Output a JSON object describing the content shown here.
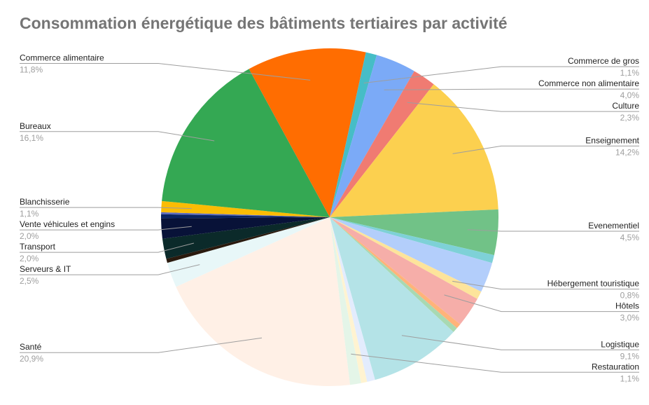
{
  "chart_data": {
    "type": "pie",
    "title": "Consommation énergétique des bâtiments tertiaires par activité",
    "slices": [
      {
        "label": "",
        "value": 0.2,
        "value_label": "",
        "color": "#5c6bc0"
      },
      {
        "label": "Blanchisserie",
        "value": 1.1,
        "value_label": "1,1%",
        "color": "#fbbc04"
      },
      {
        "label": "Bureaux",
        "value": 16.1,
        "value_label": "16,1%",
        "color": "#34a853"
      },
      {
        "label": "Commerce alimentaire",
        "value": 11.8,
        "value_label": "11,8%",
        "color": "#ff6d01"
      },
      {
        "label": "Commerce de gros",
        "value": 1.1,
        "value_label": "1,1%",
        "color": "#46bdc6"
      },
      {
        "label": "Commerce non alimentaire",
        "value": 4.0,
        "value_label": "4,0%",
        "color": "#7baaf7"
      },
      {
        "label": "Culture",
        "value": 2.3,
        "value_label": "2,3%",
        "color": "#f07b72"
      },
      {
        "label": "Enseignement",
        "value": 14.2,
        "value_label": "14,2%",
        "color": "#fcd04f"
      },
      {
        "label": "Evenementiel",
        "value": 4.5,
        "value_label": "4,5%",
        "color": "#71c287"
      },
      {
        "label": "",
        "value": 0.8,
        "value_label": "",
        "color": "#7ed1d7"
      },
      {
        "label": "",
        "value": 3.0,
        "value_label": "",
        "color": "#b3cefb"
      },
      {
        "label": "Hébergement touristique",
        "value": 0.8,
        "value_label": "0,8%",
        "color": "#fde49b"
      },
      {
        "label": "Hôtels",
        "value": 3.0,
        "value_label": "3,0%",
        "color": "#f6aea9"
      },
      {
        "label": "",
        "value": 0.5,
        "value_label": "",
        "color": "#ffb37a"
      },
      {
        "label": "",
        "value": 0.5,
        "value_label": "",
        "color": "#a8d9b2"
      },
      {
        "label": "Logistique",
        "value": 9.1,
        "value_label": "9,1%",
        "color": "#b4e3e7"
      },
      {
        "label": "",
        "value": 0.8,
        "value_label": "",
        "color": "#e3ecfd"
      },
      {
        "label": "",
        "value": 0.6,
        "value_label": "",
        "color": "#fff3d1"
      },
      {
        "label": "Restauration",
        "value": 1.1,
        "value_label": "1,1%",
        "color": "#e4f5e8"
      },
      {
        "label": "Santé",
        "value": 20.9,
        "value_label": "20,9%",
        "color": "#fff0e6"
      },
      {
        "label": "Serveurs & IT",
        "value": 2.5,
        "value_label": "2,5%",
        "color": "#e8f7f8"
      },
      {
        "label": "",
        "value": 0.4,
        "value_label": "",
        "color": "#2a1a0e"
      },
      {
        "label": "Transport",
        "value": 2.0,
        "value_label": "2,0%",
        "color": "#0b2a2a"
      },
      {
        "label": "Vente véhicules et engins",
        "value": 2.0,
        "value_label": "2,0%",
        "color": "#081238"
      },
      {
        "label": "",
        "value": 0.4,
        "value_label": "",
        "color": "#0a2461"
      }
    ],
    "legend_position": "labels on both sides"
  }
}
